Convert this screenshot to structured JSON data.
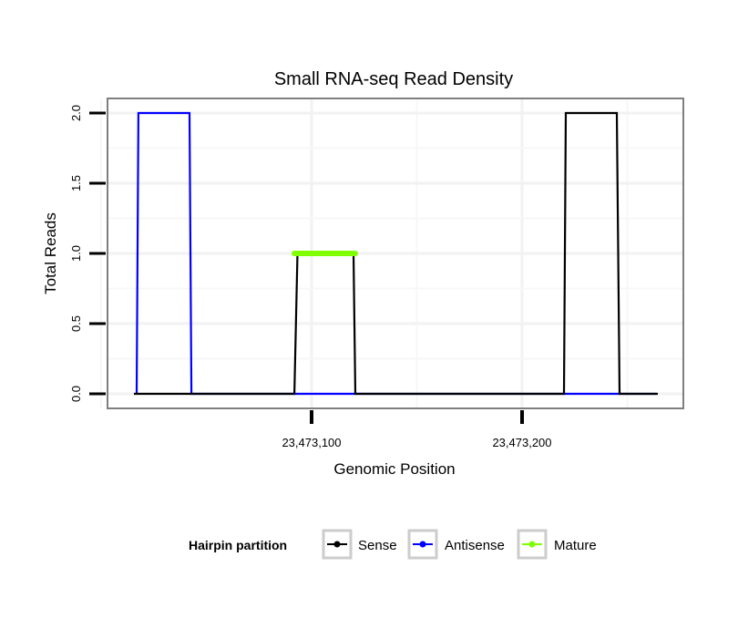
{
  "chart_data": {
    "type": "line",
    "title": "Small RNA-seq Read Density",
    "xlabel": "Genomic Position",
    "ylabel": "Total Reads",
    "x_ticks": [
      23473100,
      23473200
    ],
    "x_tick_labels": [
      "23,473,100",
      "23,473,200"
    ],
    "y_ticks": [
      0,
      0.5,
      1,
      1.5,
      2
    ],
    "y_tick_labels": [
      "0.0",
      "0.5",
      "1.0",
      "1.5",
      "2.0"
    ],
    "xlim": [
      23473000.5,
      23473276
    ],
    "ylim": [
      -0.1,
      2.1
    ],
    "grid": true,
    "legend": {
      "title": "Hairpin partition",
      "placement": "bottom",
      "entries": [
        "Sense",
        "Antisense",
        "Mature"
      ]
    },
    "series": [
      {
        "name": "Antisense",
        "color": "#0000ff",
        "x": [
          23473016.9,
          23473017.7,
          23473042,
          23473042.9,
          23473264
        ],
        "y": [
          0,
          2,
          2,
          0,
          0
        ]
      },
      {
        "name": "Sense",
        "color": "#000000",
        "x": [
          23473015.6,
          23473091.8,
          23473093.3,
          23473119.9,
          23473120.8,
          23473219.9,
          23473220.8,
          23473245,
          23473246.3,
          23473264.5
        ],
        "y": [
          0,
          0,
          1,
          1,
          0,
          0,
          2,
          2,
          0,
          0
        ]
      },
      {
        "name": "Mature",
        "color": "#7fff00",
        "x": [
          23473091.8,
          23473120.8
        ],
        "y": [
          1,
          1
        ]
      }
    ]
  }
}
